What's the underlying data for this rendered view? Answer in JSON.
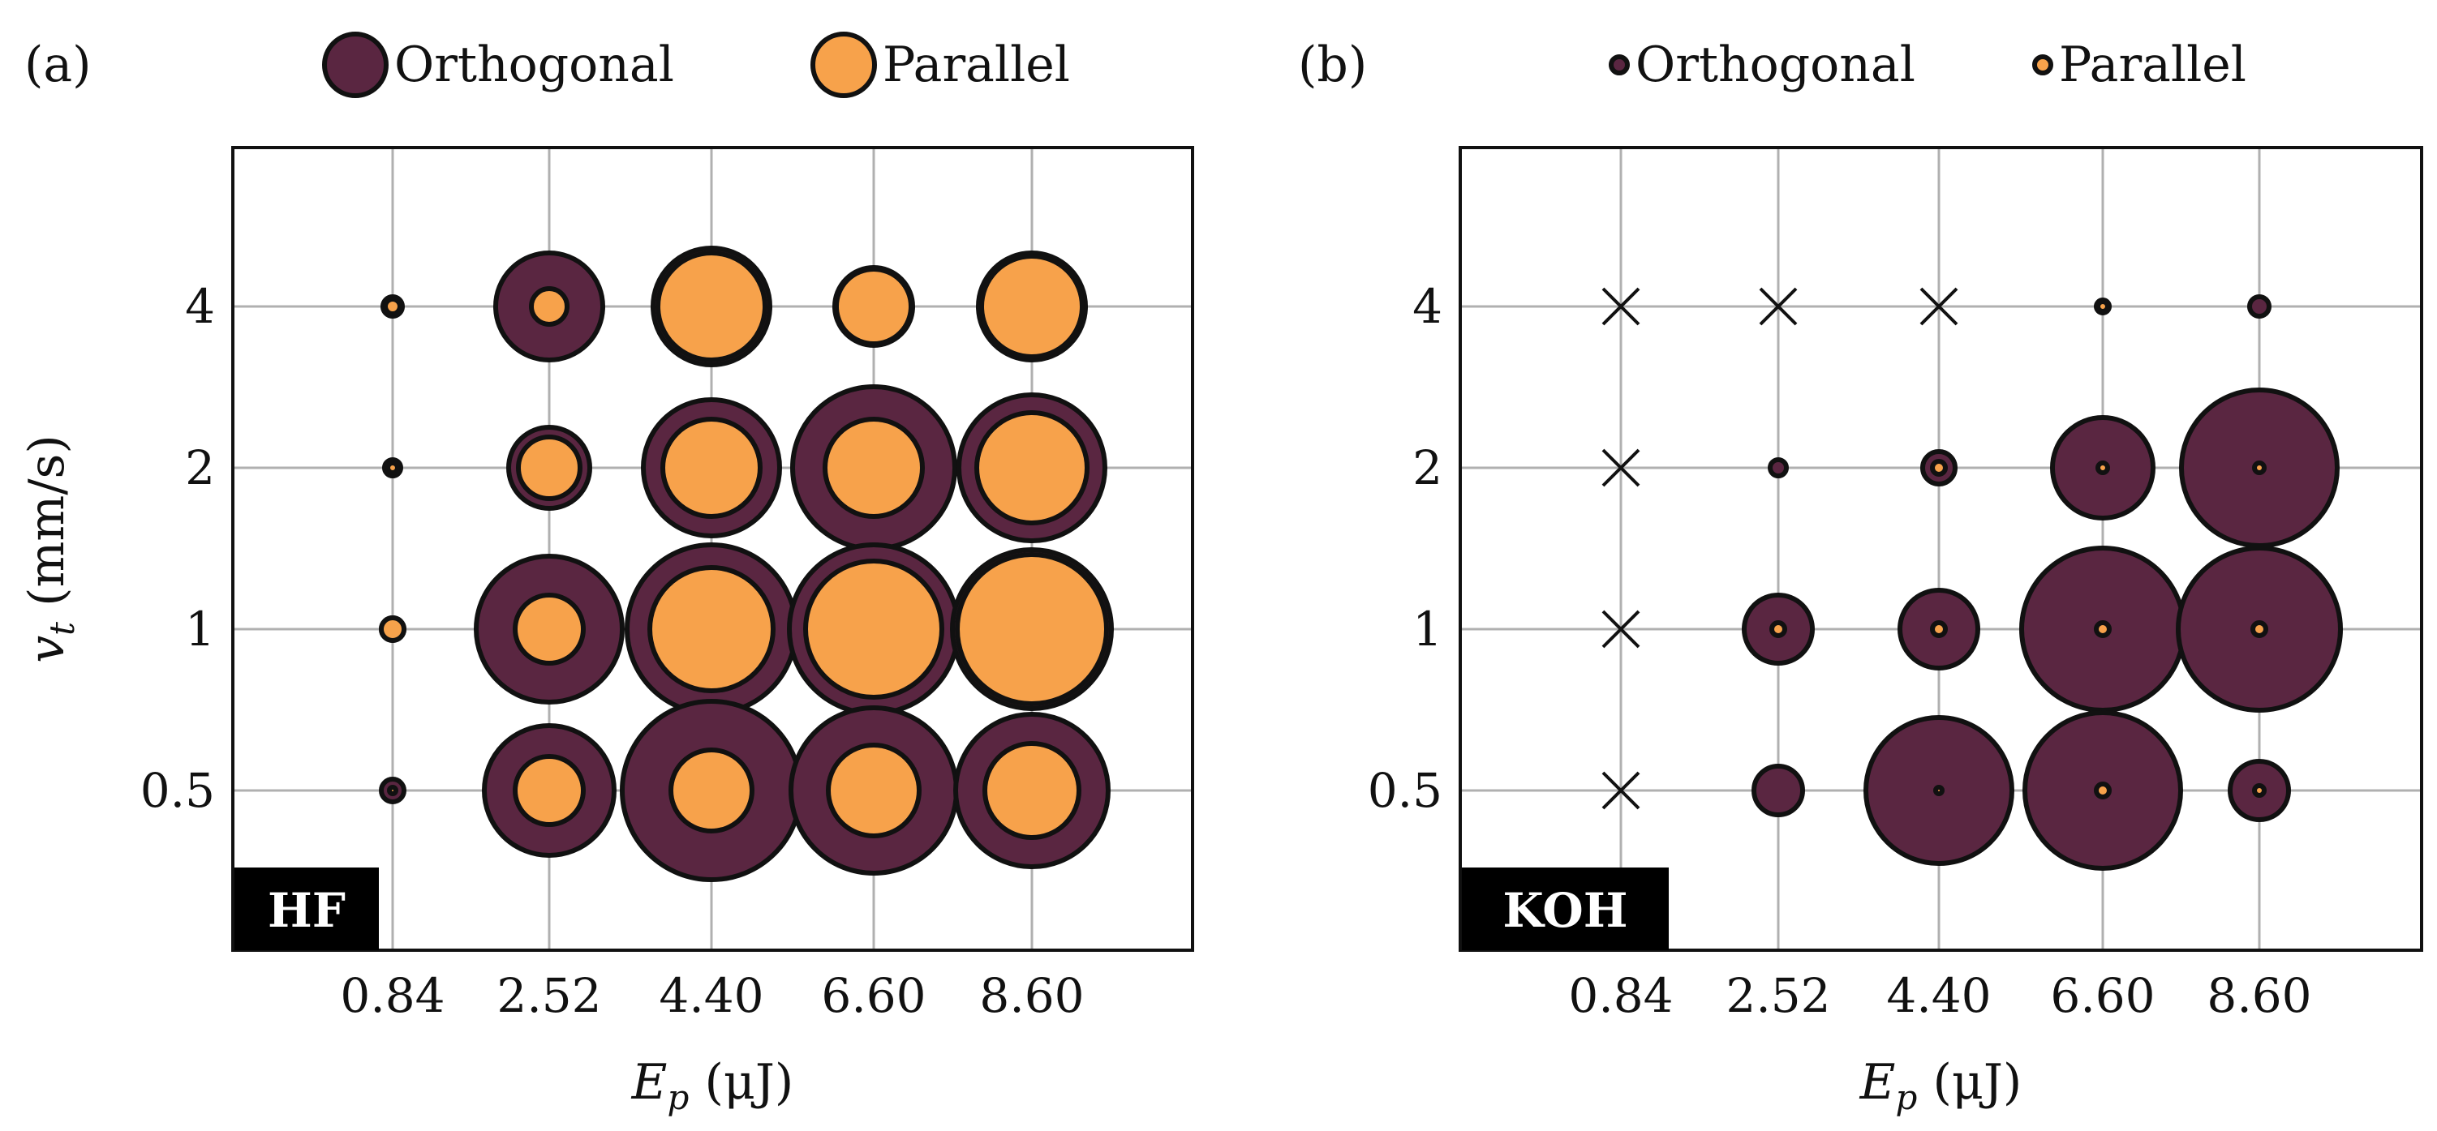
{
  "style": {
    "orthogonal_color": "#5a2641",
    "parallel_color": "#f7a24b",
    "outline_color": "#111111",
    "grid_color": "#b0b0b0",
    "badge_color": "#000000",
    "badge_text_color": "#ffffff"
  },
  "chart_data": [
    {
      "type": "bubble",
      "panel_label": "(a)",
      "badge": "HF",
      "legend": [
        "Orthogonal",
        "Parallel"
      ],
      "x_ticks": [
        "0.84",
        "2.52",
        "4.40",
        "6.60",
        "8.60"
      ],
      "y_ticks": [
        "0.5",
        "1",
        "2",
        "4"
      ],
      "xlabel": "E_p (μJ)",
      "ylabel": "v_t (mm/s)",
      "points": [
        {
          "x": "0.84",
          "y": "4",
          "orthogonal": 0.06,
          "parallel": 0.045
        },
        {
          "x": "2.52",
          "y": "4",
          "orthogonal": 0.33,
          "parallel": 0.11
        },
        {
          "x": "4.40",
          "y": "4",
          "orthogonal": 0.36,
          "parallel": 0.33
        },
        {
          "x": "6.60",
          "y": "4",
          "orthogonal": 0.24,
          "parallel": 0.23
        },
        {
          "x": "8.60",
          "y": "4",
          "orthogonal": 0.33,
          "parallel": 0.31
        },
        {
          "x": "0.84",
          "y": "2",
          "orthogonal": 0.05,
          "parallel": 0.03
        },
        {
          "x": "2.52",
          "y": "2",
          "orthogonal": 0.25,
          "parallel": 0.19
        },
        {
          "x": "4.40",
          "y": "2",
          "orthogonal": 0.42,
          "parallel": 0.3
        },
        {
          "x": "6.60",
          "y": "2",
          "orthogonal": 0.5,
          "parallel": 0.3
        },
        {
          "x": "8.60",
          "y": "2",
          "orthogonal": 0.45,
          "parallel": 0.34
        },
        {
          "x": "0.84",
          "y": "1",
          "orthogonal": 0.07,
          "parallel": 0.07
        },
        {
          "x": "2.52",
          "y": "1",
          "orthogonal": 0.45,
          "parallel": 0.21
        },
        {
          "x": "4.40",
          "y": "1",
          "orthogonal": 0.52,
          "parallel": 0.38
        },
        {
          "x": "6.60",
          "y": "1",
          "orthogonal": 0.52,
          "parallel": 0.42
        },
        {
          "x": "8.60",
          "y": "1",
          "orthogonal": 0.49,
          "parallel": 0.46
        },
        {
          "x": "0.84",
          "y": "0.5",
          "orthogonal": 0.07,
          "parallel": 0.02
        },
        {
          "x": "2.52",
          "y": "0.5",
          "orthogonal": 0.4,
          "parallel": 0.21
        },
        {
          "x": "4.40",
          "y": "0.5",
          "orthogonal": 0.55,
          "parallel": 0.25
        },
        {
          "x": "6.60",
          "y": "0.5",
          "orthogonal": 0.51,
          "parallel": 0.28
        },
        {
          "x": "8.60",
          "y": "0.5",
          "orthogonal": 0.47,
          "parallel": 0.29
        }
      ]
    },
    {
      "type": "bubble",
      "panel_label": "(b)",
      "badge": "KOH",
      "legend": [
        "Orthogonal",
        "Parallel"
      ],
      "x_ticks": [
        "0.84",
        "2.52",
        "4.40",
        "6.60",
        "8.60"
      ],
      "y_ticks": [
        "0.5",
        "1",
        "2",
        "4"
      ],
      "xlabel": "E_p (μJ)",
      "ylabel": "",
      "points": [
        {
          "x": "0.84",
          "y": "4",
          "missing": true
        },
        {
          "x": "2.52",
          "y": "4",
          "missing": true
        },
        {
          "x": "4.40",
          "y": "4",
          "missing": true
        },
        {
          "x": "6.60",
          "y": "4",
          "orthogonal": 0.04,
          "parallel": 0.03
        },
        {
          "x": "8.60",
          "y": "4",
          "orthogonal": 0.06,
          "parallel": 0.0
        },
        {
          "x": "0.84",
          "y": "2",
          "missing": true
        },
        {
          "x": "2.52",
          "y": "2",
          "orthogonal": 0.05,
          "parallel": 0.0
        },
        {
          "x": "4.40",
          "y": "2",
          "orthogonal": 0.1,
          "parallel": 0.04
        },
        {
          "x": "6.60",
          "y": "2",
          "orthogonal": 0.31,
          "parallel": 0.03
        },
        {
          "x": "8.60",
          "y": "2",
          "orthogonal": 0.48,
          "parallel": 0.03
        },
        {
          "x": "0.84",
          "y": "1",
          "missing": true
        },
        {
          "x": "2.52",
          "y": "1",
          "orthogonal": 0.21,
          "parallel": 0.04
        },
        {
          "x": "4.40",
          "y": "1",
          "orthogonal": 0.24,
          "parallel": 0.04
        },
        {
          "x": "6.60",
          "y": "1",
          "orthogonal": 0.5,
          "parallel": 0.04
        },
        {
          "x": "8.60",
          "y": "1",
          "orthogonal": 0.5,
          "parallel": 0.04
        },
        {
          "x": "0.84",
          "y": "0.5",
          "missing": true
        },
        {
          "x": "2.52",
          "y": "0.5",
          "orthogonal": 0.15,
          "parallel": 0.0
        },
        {
          "x": "4.40",
          "y": "0.5",
          "orthogonal": 0.45,
          "parallel": 0.02
        },
        {
          "x": "6.60",
          "y": "0.5",
          "orthogonal": 0.48,
          "parallel": 0.04
        },
        {
          "x": "8.60",
          "y": "0.5",
          "orthogonal": 0.18,
          "parallel": 0.03
        }
      ]
    }
  ]
}
